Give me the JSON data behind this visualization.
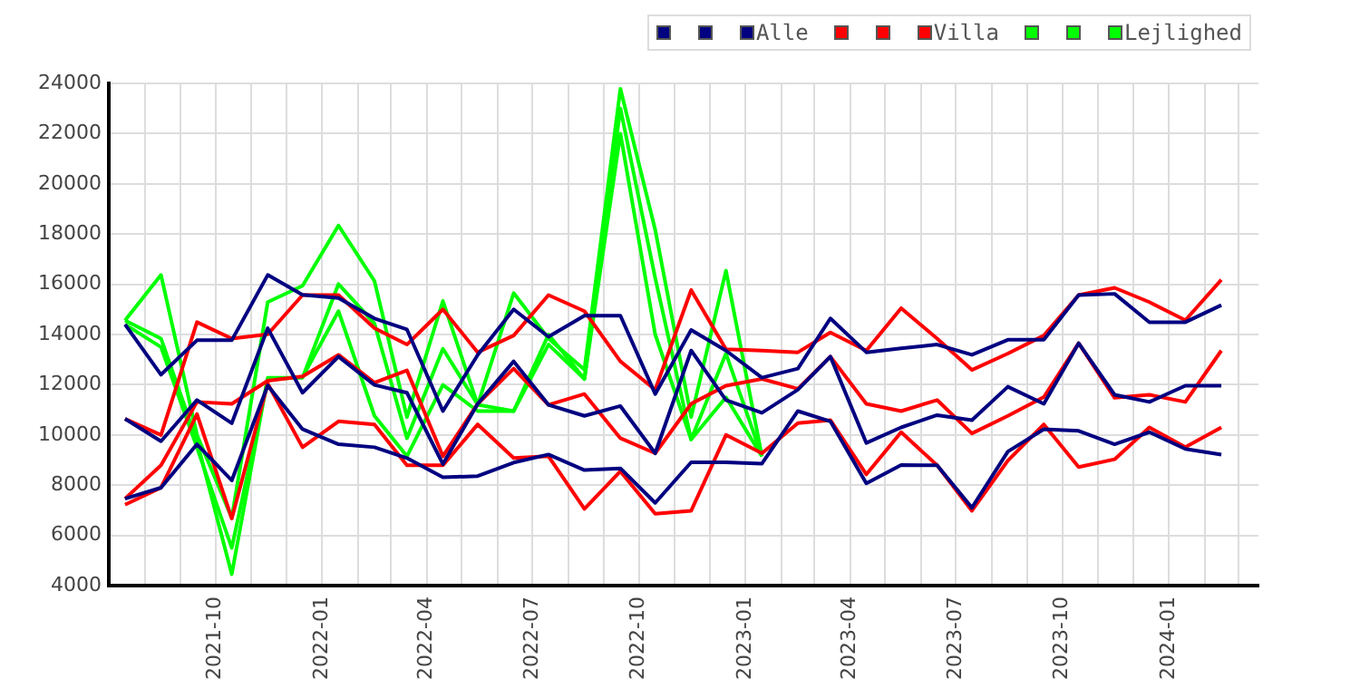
{
  "chart_data": {
    "type": "line",
    "x": [
      "2021-07-15",
      "2021-08-15",
      "2021-09-15",
      "2021-10-15",
      "2021-11-15",
      "2021-12-15",
      "2022-01-15",
      "2022-02-15",
      "2022-03-15",
      "2022-04-15",
      "2022-05-15",
      "2022-06-15",
      "2022-07-15",
      "2022-08-15",
      "2022-09-15",
      "2022-10-15",
      "2022-11-15",
      "2022-12-15",
      "2023-01-15",
      "2023-02-15",
      "2023-03-15",
      "2023-04-15",
      "2023-05-15",
      "2023-06-15",
      "2023-07-15",
      "2023-08-15",
      "2023-09-15",
      "2023-10-15",
      "2023-11-15",
      "2023-12-15",
      "2024-01-15",
      "2024-02-15"
    ],
    "series": [
      {
        "name": null,
        "color": "#000080",
        "values": [
          14400,
          12400,
          13770,
          13770,
          16370,
          15580,
          15450,
          14640,
          14200,
          10950,
          13190,
          15000,
          13910,
          14750,
          14750,
          11630,
          14180,
          13360,
          12280,
          12640,
          14640,
          13290,
          13450,
          13600,
          13190,
          13790,
          13790,
          15570,
          15620,
          14490,
          14490,
          15170
        ]
      },
      {
        "name": null,
        "color": "#000080",
        "values": [
          10640,
          9750,
          11390,
          10470,
          14250,
          11680,
          13120,
          11990,
          11680,
          8840,
          11240,
          12930,
          11200,
          10760,
          11150,
          9270,
          13360,
          11390,
          10880,
          11800,
          13120,
          9680,
          10300,
          10790,
          10590,
          11920,
          11240,
          13650,
          11600,
          11315,
          11960,
          11960
        ]
      },
      {
        "name": "Alle",
        "color": "#000080",
        "values": [
          7460,
          7900,
          9630,
          8190,
          11970,
          10230,
          9630,
          9510,
          9080,
          8310,
          8360,
          8900,
          9220,
          8600,
          8670,
          7295,
          8910,
          8910,
          8860,
          10950,
          10540,
          8070,
          8800,
          8790,
          7100,
          9340,
          10230,
          10160,
          9630,
          10110,
          9440,
          9220
        ]
      },
      {
        "name": null,
        "color": "#ff0000",
        "values": [
          10640,
          10000,
          14490,
          13840,
          14010,
          15570,
          15570,
          14250,
          13600,
          15000,
          13290,
          13960,
          15570,
          14930,
          12930,
          11800,
          15770,
          13410,
          13360,
          13290,
          14080,
          13360,
          15050,
          13840,
          12590,
          13240,
          13960,
          15570,
          15860,
          15290,
          14570,
          16180
        ]
      },
      {
        "name": null,
        "color": "#ff0000",
        "values": [
          7460,
          8790,
          11315,
          11240,
          12160,
          12330,
          13190,
          12085,
          12570,
          9150,
          11240,
          12640,
          11200,
          11630,
          9870,
          9270,
          11240,
          11960,
          12230,
          11840,
          13120,
          11240,
          10950,
          11390,
          10060,
          10760,
          11510,
          13650,
          11480,
          11600,
          11315,
          13360
        ]
      },
      {
        "name": "Villa",
        "color": "#ff0000",
        "values": [
          7220,
          7900,
          10830,
          6670,
          12040,
          9510,
          10540,
          10420,
          8790,
          8790,
          10420,
          9080,
          9150,
          7055,
          8550,
          6860,
          6980,
          10000,
          9270,
          10470,
          10590,
          8430,
          10110,
          8790,
          6980,
          8980,
          10420,
          8720,
          9030,
          10300,
          9510,
          10300
        ]
      },
      {
        "name": null,
        "color": "#00ff00",
        "values": [
          14560,
          16370,
          10000,
          6700,
          15290,
          15940,
          18340,
          16130,
          10710,
          15335,
          11200,
          15650,
          13840,
          12600,
          23780,
          18170,
          10710,
          16540,
          9150,
          null,
          null,
          null,
          null,
          null,
          null,
          null,
          null,
          null,
          null,
          null,
          null,
          null
        ]
      },
      {
        "name": null,
        "color": "#00ff00",
        "values": [
          14560,
          13840,
          9750,
          4455,
          12280,
          12280,
          16010,
          14440,
          9870,
          13430,
          11200,
          10950,
          13600,
          12230,
          23000,
          16250,
          9820,
          13240,
          9150,
          null,
          null,
          null,
          null,
          null,
          null,
          null,
          null,
          null,
          null,
          null,
          null,
          null
        ]
      },
      {
        "name": "Lejlighed",
        "color": "#00ff00",
        "values": [
          14400,
          13500,
          9500,
          5500,
          12200,
          12300,
          14930,
          10760,
          9150,
          11990,
          10950,
          10950,
          14000,
          12230,
          22000,
          14000,
          9820,
          11500,
          9150,
          null,
          null,
          null,
          null,
          null,
          null,
          null,
          null,
          null,
          null,
          null,
          null,
          null
        ]
      }
    ],
    "xlim": [
      "2021-07-01",
      "2024-03-18"
    ],
    "xticks": [
      {
        "value": "2021-08",
        "label": null
      },
      {
        "value": "2021-09",
        "label": null
      },
      "2021-10",
      {
        "value": "2021-11",
        "label": null
      },
      {
        "value": "2021-12",
        "label": null
      },
      "2022-01",
      {
        "value": "2022-02",
        "label": null
      },
      {
        "value": "2022-03",
        "label": null
      },
      "2022-04",
      {
        "value": "2022-05",
        "label": null
      },
      {
        "value": "2022-06",
        "label": null
      },
      "2022-07",
      {
        "value": "2022-08",
        "label": null
      },
      {
        "value": "2022-09",
        "label": null
      },
      "2022-10",
      {
        "value": "2022-11",
        "label": null
      },
      {
        "value": "2022-12",
        "label": null
      },
      "2023-01",
      {
        "value": "2023-02",
        "label": null
      },
      {
        "value": "2023-03",
        "label": null
      },
      "2023-04",
      {
        "value": "2023-05",
        "label": null
      },
      {
        "value": "2023-06",
        "label": null
      },
      "2023-07",
      {
        "value": "2023-08",
        "label": null
      },
      {
        "value": "2023-09",
        "label": null
      },
      "2023-10",
      {
        "value": "2023-11",
        "label": null
      },
      {
        "value": "2023-12",
        "label": null
      },
      "2024-01",
      {
        "value": "2024-02",
        "label": null
      },
      {
        "value": "2024-03",
        "label": null
      }
    ],
    "ylim": [
      4000,
      24000
    ],
    "yticks": [
      4000,
      6000,
      8000,
      10000,
      12000,
      14000,
      16000,
      18000,
      20000,
      22000,
      24000
    ],
    "grid": true,
    "legend": "top right",
    "marker": "none",
    "line_style": "solid"
  }
}
